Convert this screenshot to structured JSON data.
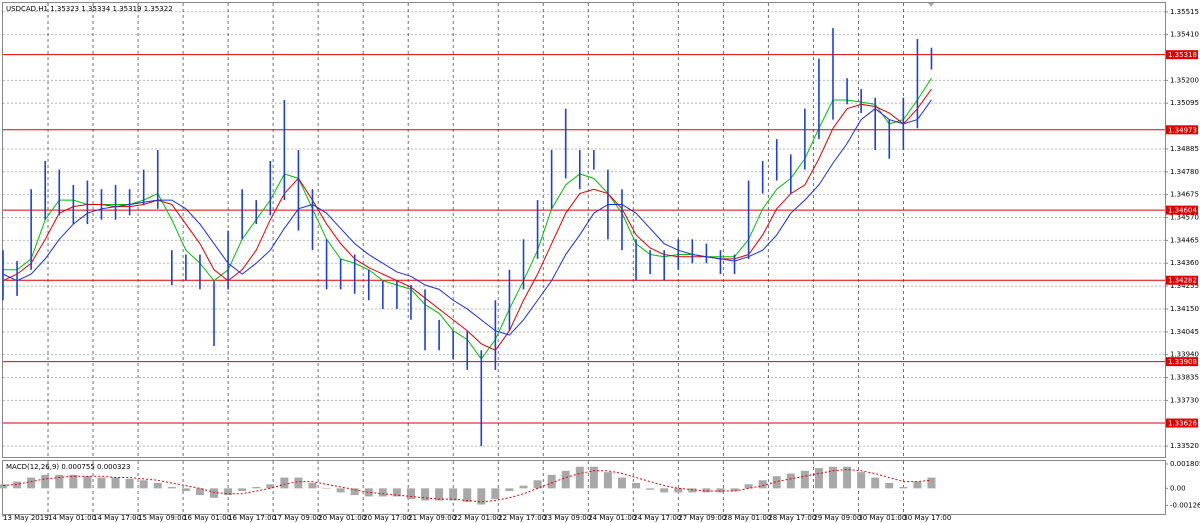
{
  "chart_data": [
    {
      "type": "ohlc",
      "title": "USDCAD,H1  1.35323 1.35334 1.35319 1.35322",
      "x": [
        0,
        5,
        10,
        15,
        20,
        25,
        30,
        35,
        40,
        45,
        50,
        55,
        60,
        65,
        70,
        75,
        80,
        85,
        90,
        95,
        100,
        105,
        110,
        115,
        120,
        125,
        130,
        135,
        140,
        145,
        150,
        155,
        160,
        165,
        170,
        175,
        180,
        185,
        190,
        195,
        200,
        205,
        210,
        215,
        220,
        225,
        230,
        235,
        240,
        245,
        250,
        255,
        260,
        265,
        270,
        275,
        280,
        285,
        290,
        295,
        300,
        305,
        310,
        315,
        320,
        325,
        330
      ],
      "high": [
        1.3442,
        1.3437,
        1.347,
        1.3483,
        1.3479,
        1.3472,
        1.3474,
        1.347,
        1.3472,
        1.347,
        1.3479,
        1.3488,
        1.3442,
        1.344,
        1.344,
        1.3428,
        1.3451,
        1.347,
        1.3465,
        1.3483,
        1.3511,
        1.3488,
        1.347,
        1.3447,
        1.3438,
        1.344,
        1.3433,
        1.3428,
        1.3428,
        1.3426,
        1.3424,
        1.341,
        1.3405,
        1.3405,
        1.3396,
        1.3419,
        1.3433,
        1.3447,
        1.3465,
        1.3488,
        1.3507,
        1.3488,
        1.3488,
        1.3479,
        1.347,
        1.3447,
        1.3442,
        1.3442,
        1.3447,
        1.3447,
        1.3445,
        1.3442,
        1.344,
        1.3474,
        1.3483,
        1.3493,
        1.3486,
        1.3507,
        1.353,
        1.3544,
        1.3521,
        1.3516,
        1.3512,
        1.3502,
        1.3512,
        1.3539,
        1.3535
      ],
      "low": [
        1.3419,
        1.3421,
        1.3433,
        1.3456,
        1.3458,
        1.3454,
        1.3454,
        1.3456,
        1.3456,
        1.3458,
        1.3463,
        1.3461,
        1.3426,
        1.3428,
        1.3424,
        1.3398,
        1.3424,
        1.3447,
        1.3454,
        1.3458,
        1.3465,
        1.3451,
        1.3442,
        1.3424,
        1.3424,
        1.3422,
        1.3419,
        1.3415,
        1.3415,
        1.341,
        1.3396,
        1.3396,
        1.3392,
        1.3387,
        1.3352,
        1.3387,
        1.3405,
        1.3424,
        1.3438,
        1.3461,
        1.3475,
        1.347,
        1.3479,
        1.3447,
        1.3442,
        1.3428,
        1.3431,
        1.3428,
        1.3433,
        1.3436,
        1.3436,
        1.3431,
        1.3431,
        1.3438,
        1.3468,
        1.3474,
        1.3468,
        1.3479,
        1.3493,
        1.3502,
        1.3509,
        1.3505,
        1.3488,
        1.3484,
        1.3488,
        1.3498,
        1.3525
      ],
      "color": "#1d3fd8",
      "ma_lines": [
        {
          "color": "#00c000",
          "values": [
            1.3433,
            1.3433,
            1.3438,
            1.3456,
            1.3465,
            1.3465,
            1.3463,
            1.3463,
            1.3463,
            1.3463,
            1.3465,
            1.3468,
            1.3456,
            1.3442,
            1.3436,
            1.3428,
            1.3433,
            1.3447,
            1.3456,
            1.3465,
            1.3477,
            1.3475,
            1.3461,
            1.3447,
            1.3438,
            1.3436,
            1.3433,
            1.3428,
            1.3426,
            1.3424,
            1.3417,
            1.3413,
            1.3405,
            1.3401,
            1.3392,
            1.3401,
            1.3415,
            1.3428,
            1.3442,
            1.3461,
            1.3472,
            1.3477,
            1.3475,
            1.3468,
            1.3459,
            1.3445,
            1.344,
            1.3439,
            1.344,
            1.344,
            1.3439,
            1.3439,
            1.3439,
            1.3447,
            1.3461,
            1.347,
            1.3475,
            1.3484,
            1.3498,
            1.3511,
            1.3511,
            1.351,
            1.3509,
            1.35,
            1.3502,
            1.3511,
            1.3521
          ]
        },
        {
          "color": "#e00000",
          "values": [
            1.3428,
            1.3431,
            1.3436,
            1.3447,
            1.3459,
            1.3462,
            1.3463,
            1.3463,
            1.3462,
            1.3462,
            1.3463,
            1.3465,
            1.3463,
            1.3454,
            1.3445,
            1.3433,
            1.3428,
            1.3433,
            1.3442,
            1.3456,
            1.3468,
            1.3475,
            1.3465,
            1.3454,
            1.3445,
            1.3438,
            1.3434,
            1.3431,
            1.3428,
            1.3425,
            1.342,
            1.3415,
            1.341,
            1.3405,
            1.3399,
            1.3396,
            1.3405,
            1.3419,
            1.3431,
            1.3445,
            1.3459,
            1.3468,
            1.347,
            1.3468,
            1.3461,
            1.3449,
            1.3443,
            1.344,
            1.3439,
            1.3439,
            1.3439,
            1.3438,
            1.3438,
            1.344,
            1.3449,
            1.3461,
            1.3468,
            1.3472,
            1.3484,
            1.3498,
            1.3507,
            1.3509,
            1.3508,
            1.3505,
            1.35,
            1.3507,
            1.3516
          ]
        },
        {
          "color": "#1a2ee0",
          "values": [
            1.3431,
            1.3428,
            1.3431,
            1.3438,
            1.3447,
            1.3454,
            1.3459,
            1.3461,
            1.3462,
            1.3463,
            1.3464,
            1.3465,
            1.3465,
            1.3461,
            1.3454,
            1.3445,
            1.3436,
            1.3431,
            1.3436,
            1.3442,
            1.3452,
            1.3461,
            1.3463,
            1.3459,
            1.3452,
            1.3445,
            1.344,
            1.3436,
            1.3432,
            1.343,
            1.3426,
            1.3424,
            1.3419,
            1.3415,
            1.341,
            1.3405,
            1.3403,
            1.341,
            1.3419,
            1.3428,
            1.344,
            1.3449,
            1.3459,
            1.3463,
            1.3463,
            1.3459,
            1.3452,
            1.3445,
            1.3442,
            1.344,
            1.3439,
            1.3438,
            1.3437,
            1.3439,
            1.3442,
            1.3449,
            1.3459,
            1.3465,
            1.3472,
            1.3482,
            1.3491,
            1.3502,
            1.3507,
            1.3502,
            1.35,
            1.3502,
            1.3511
          ]
        }
      ],
      "levels": [
        1.35318,
        1.34973,
        1.34604,
        1.34282,
        1.33908,
        1.33626
      ],
      "level_color": "#e00000",
      "xlim": [
        0,
        413
      ],
      "ylim": [
        1.3347,
        1.3556
      ],
      "yticks": [
        1.35515,
        {
          "value": 1.3541,
          "label": "1.35410"
        },
        {
          "value": 1.352,
          "label": "1.35200"
        },
        1.35095,
        1.34885,
        {
          "value": 1.3478,
          "label": "1.34780"
        },
        1.34675,
        {
          "value": 1.3457,
          "label": "1.34570"
        },
        1.34465,
        {
          "value": 1.3436,
          "label": "1.34360"
        },
        1.34255,
        {
          "value": 1.3415,
          "label": "1.34150"
        },
        1.34045,
        {
          "value": 1.3394,
          "label": "1.33940"
        },
        1.33835,
        {
          "value": 1.3373,
          "label": "1.33730"
        },
        {
          "value": 1.3352,
          "label": "1.33520"
        }
      ],
      "grid": true
    },
    {
      "type": "macd",
      "title": "MACD(12,26,9) 0.000755 0.000323",
      "x": [
        0,
        5,
        10,
        15,
        20,
        25,
        30,
        35,
        40,
        45,
        50,
        55,
        60,
        65,
        70,
        75,
        80,
        85,
        90,
        95,
        100,
        105,
        110,
        115,
        120,
        125,
        130,
        135,
        140,
        145,
        150,
        155,
        160,
        165,
        170,
        175,
        180,
        185,
        190,
        195,
        200,
        205,
        210,
        215,
        220,
        225,
        230,
        235,
        240,
        245,
        250,
        255,
        260,
        265,
        270,
        275,
        280,
        285,
        290,
        295,
        300,
        305,
        310,
        315,
        320,
        325,
        330
      ],
      "histogram": [
        0.0003,
        0.0005,
        0.0008,
        0.001,
        0.001,
        0.001,
        0.0009,
        0.0008,
        0.0008,
        0.0007,
        0.0006,
        0.0004,
        0.0001,
        -0.0002,
        -0.0005,
        -0.0007,
        -0.0005,
        -0.0002,
        0.0001,
        0.0003,
        0.0008,
        0.0008,
        0.0004,
        0,
        -0.0003,
        -0.0005,
        -0.0006,
        -0.0006,
        -0.0006,
        -0.0008,
        -0.0009,
        -0.0009,
        -0.0009,
        -0.001,
        -0.0012,
        -0.0008,
        -0.0002,
        0.0002,
        0.0006,
        0.001,
        0.0013,
        0.0016,
        0.0016,
        0.0012,
        0.0008,
        0.0004,
        -0.0001,
        -0.0003,
        -0.0003,
        -0.0003,
        -0.0003,
        -0.0003,
        -0.0002,
        0.0003,
        0.0006,
        0.0009,
        0.0011,
        0.0013,
        0.0015,
        0.0016,
        0.0016,
        0.0012,
        0.0008,
        0.0004,
        0.0001,
        0.0005,
        0.0008
      ],
      "histogram_color": "#a8a8a8",
      "signal": [
        0.0002,
        0.0003,
        0.0005,
        0.0007,
        0.0008,
        0.0009,
        0.0009,
        0.0009,
        0.0008,
        0.0008,
        0.0007,
        0.0006,
        0.0004,
        0.0002,
        0,
        -0.0003,
        -0.0004,
        -0.0004,
        -0.0002,
        0,
        0.0003,
        0.0005,
        0.0005,
        0.0003,
        0.0001,
        -0.0001,
        -0.0003,
        -0.0004,
        -0.0005,
        -0.0006,
        -0.0007,
        -0.0008,
        -0.0008,
        -0.0009,
        -0.001,
        -0.0009,
        -0.0007,
        -0.0004,
        0,
        0.0004,
        0.0008,
        0.0011,
        0.0013,
        0.0013,
        0.0011,
        0.0008,
        0.0005,
        0.0002,
        0,
        -0.0001,
        -0.0002,
        -0.0002,
        -0.0002,
        0,
        0.0002,
        0.0005,
        0.0007,
        0.0009,
        0.0011,
        0.0013,
        0.0014,
        0.0013,
        0.0011,
        0.0008,
        0.0005,
        0.0005,
        0.0006
      ],
      "signal_color": "#e00000",
      "xlim": [
        0,
        413
      ],
      "ylim": [
        -0.0019,
        0.0021
      ],
      "yticks": [
        0.001805,
        {
          "value": 0,
          "label": "0.00"
        },
        -0.001263
      ],
      "xticks": [
        {
          "value": 0,
          "label": "13 May 2019"
        },
        {
          "value": 16,
          "label": "14 May 01:00"
        },
        {
          "value": 32,
          "label": "14 May 17:00"
        },
        {
          "value": 48,
          "label": "15 May 09:00"
        },
        {
          "value": 64,
          "label": "16 May 01:00"
        },
        {
          "value": 80,
          "label": "16 May 17:00"
        },
        {
          "value": 96,
          "label": "17 May 09:00"
        },
        {
          "value": 112,
          "label": "20 May 01:00"
        },
        {
          "value": 128,
          "label": "20 May 17:00"
        },
        {
          "value": 144,
          "label": "21 May 09:00"
        },
        {
          "value": 160,
          "label": "22 May 01:00"
        },
        {
          "value": 176,
          "label": "22 May 17:00"
        },
        {
          "value": 192,
          "label": "23 May 09:00"
        },
        {
          "value": 208,
          "label": "24 May 01:00"
        },
        {
          "value": 224,
          "label": "24 May 17:00"
        },
        {
          "value": 240,
          "label": "27 May 09:00"
        },
        {
          "value": 256,
          "label": "28 May 01:00"
        },
        {
          "value": 272,
          "label": "28 May 17:00"
        },
        {
          "value": 288,
          "label": "29 May 09:00"
        },
        {
          "value": 304,
          "label": "30 May 01:00"
        },
        {
          "value": 320,
          "label": "30 May 17:00"
        }
      ]
    }
  ]
}
